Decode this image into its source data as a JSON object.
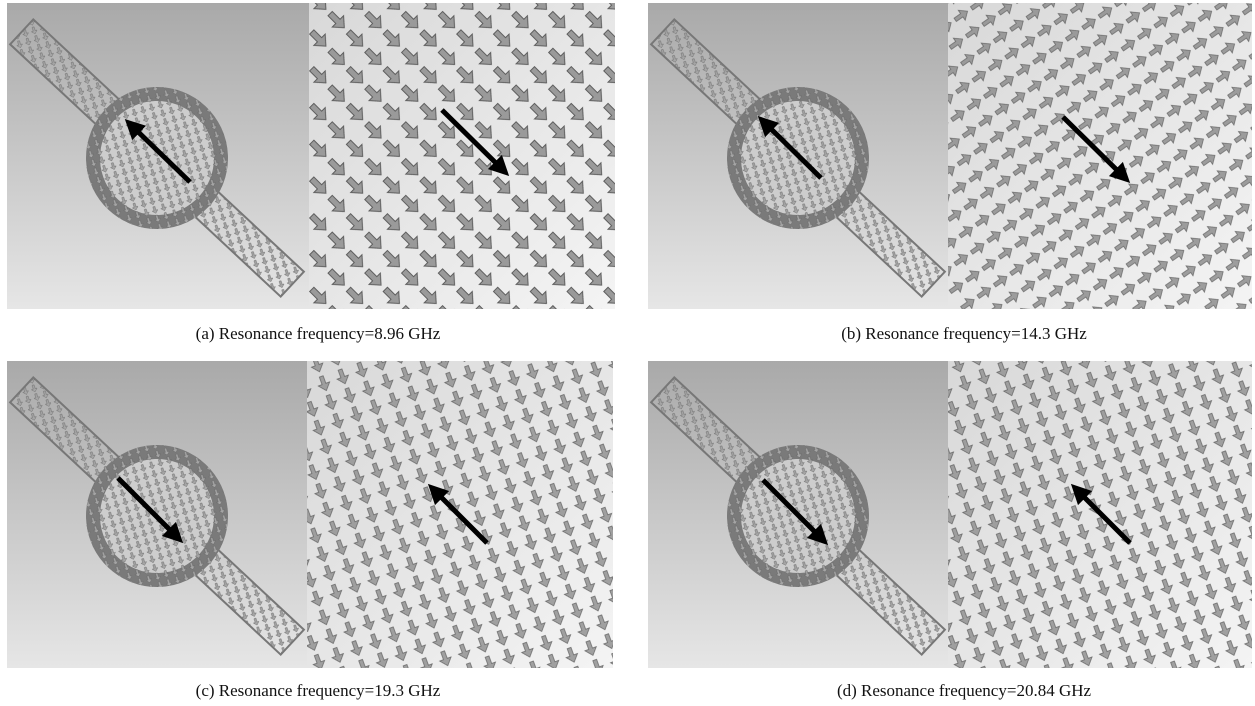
{
  "panels": [
    {
      "caption": "(a) Resonance frequency=8.96 GHz"
    },
    {
      "caption": "(b) Resonance frequency=14.3 GHz"
    },
    {
      "caption": "(c) Resonance frequency=19.3 GHz"
    },
    {
      "caption": "(d) Resonance frequency=20.84 GHz"
    }
  ]
}
